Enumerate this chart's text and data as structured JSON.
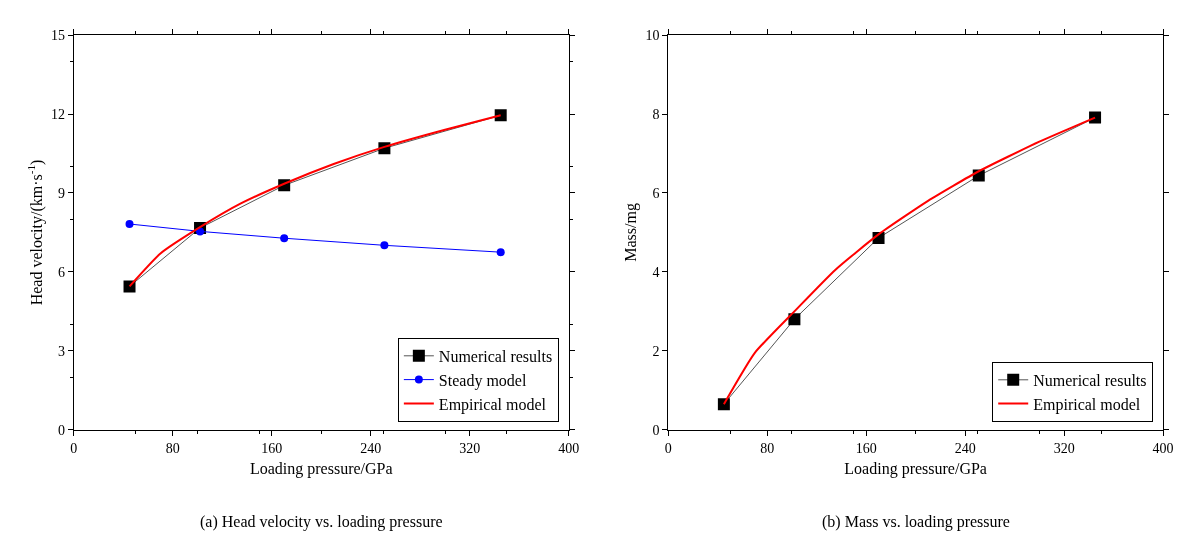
{
  "chart_data": [
    {
      "type": "line",
      "xlabel": "Loading pressure/GPa",
      "ylabel": "Head velocity/(km·s$^{-1}$)",
      "xlim": [
        0,
        400
      ],
      "xticks": [
        0,
        80,
        160,
        240,
        320,
        400
      ],
      "ylim": [
        0,
        15
      ],
      "yticks": [
        0,
        3,
        6,
        9,
        12,
        15
      ],
      "legend": "bottom right",
      "annotations": [
        "(a) Head velocity vs. loading pressure"
      ],
      "series": [
        {
          "name": "Numerical results",
          "color": "#000000",
          "marker": "square",
          "x": [
            45,
            102,
            170,
            251,
            345
          ],
          "values": [
            5.45,
            7.67,
            9.29,
            10.7,
            11.95
          ]
        },
        {
          "name": "Steady model",
          "color": "#0000ff",
          "marker": "circle",
          "x": [
            45,
            102,
            170,
            251,
            345
          ],
          "values": [
            7.82,
            7.54,
            7.28,
            7.01,
            6.75
          ]
        },
        {
          "name": "Empirical model",
          "color": "#ff0000",
          "marker": "none",
          "x": [
            45,
            70,
            102,
            135,
            170,
            210,
            251,
            300,
            345
          ],
          "values": [
            5.45,
            6.7,
            7.7,
            8.6,
            9.35,
            10.1,
            10.75,
            11.4,
            11.95
          ]
        }
      ]
    },
    {
      "type": "line",
      "xlabel": "Loading pressure/GPa",
      "ylabel": "Mass/mg",
      "xlim": [
        0,
        400
      ],
      "xticks": [
        0,
        80,
        160,
        240,
        320,
        400
      ],
      "ylim": [
        0,
        10
      ],
      "yticks": [
        0,
        2,
        4,
        6,
        8,
        10
      ],
      "legend": "bottom right",
      "annotations": [
        "(b) Mass vs. loading pressure"
      ],
      "series": [
        {
          "name": "Numerical results",
          "color": "#000000",
          "marker": "square",
          "x": [
            45,
            102,
            170,
            251,
            345
          ],
          "values": [
            0.65,
            2.8,
            4.86,
            6.44,
            7.91
          ]
        },
        {
          "name": "Empirical model",
          "color": "#ff0000",
          "marker": "none",
          "x": [
            45,
            70,
            102,
            135,
            170,
            210,
            251,
            300,
            345
          ],
          "values": [
            0.65,
            1.95,
            3.0,
            4.05,
            4.95,
            5.8,
            6.55,
            7.3,
            7.91
          ]
        }
      ]
    }
  ]
}
